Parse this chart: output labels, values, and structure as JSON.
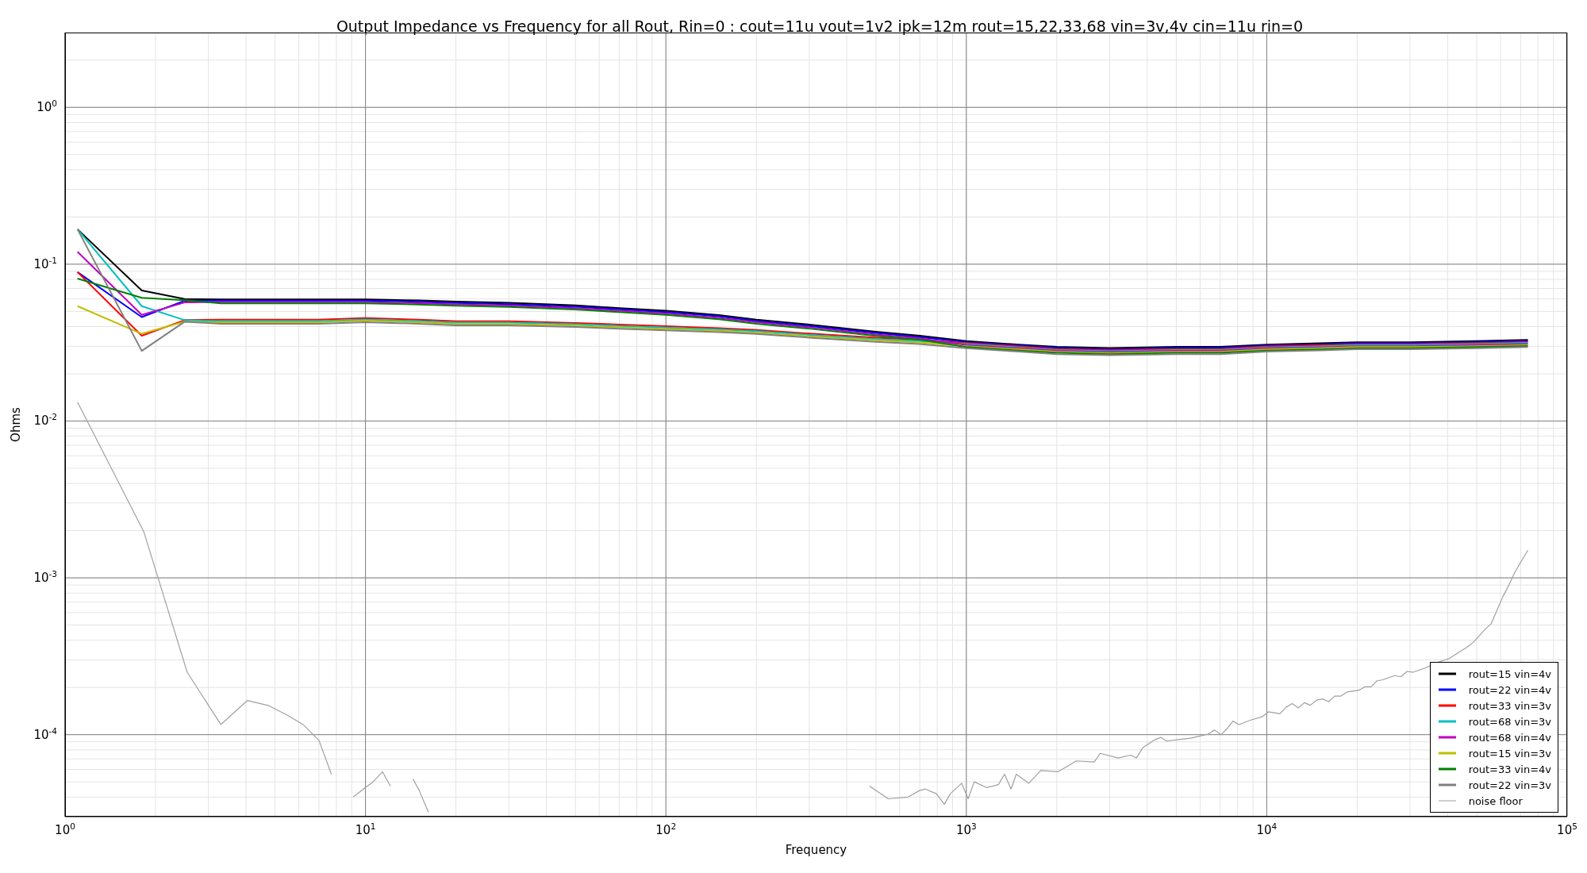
{
  "chart_data": {
    "type": "line",
    "title": "Output Impedance vs Frequency for all Rout, Rin=0 : cout=11u vout=1v2 ipk=12m rout=15,22,33,68 vin=3v,4v cin=11u rin=0",
    "xlabel": "Frequency",
    "ylabel": "Ohms",
    "log": "xy",
    "grid": true,
    "legend": "bottom right",
    "xlim": [
      1,
      100000
    ],
    "ylim": [
      3e-05,
      3
    ],
    "xticks": [
      {
        "value": 1,
        "label": "10$^{0}$"
      },
      {
        "value": 2,
        "label": null
      },
      {
        "value": 3,
        "label": null
      },
      {
        "value": 4,
        "label": null
      },
      {
        "value": 5,
        "label": null
      },
      {
        "value": 6,
        "label": null
      },
      {
        "value": 7,
        "label": null
      },
      {
        "value": 8,
        "label": null
      },
      {
        "value": 9,
        "label": null
      },
      {
        "value": 10,
        "label": "10$^{1}$"
      },
      {
        "value": 20,
        "label": null
      },
      {
        "value": 30,
        "label": null
      },
      {
        "value": 40,
        "label": null
      },
      {
        "value": 50,
        "label": null
      },
      {
        "value": 60,
        "label": null
      },
      {
        "value": 70,
        "label": null
      },
      {
        "value": 80,
        "label": null
      },
      {
        "value": 90,
        "label": null
      },
      {
        "value": 100,
        "label": "10$^{2}$"
      },
      {
        "value": 200,
        "label": null
      },
      {
        "value": 300,
        "label": null
      },
      {
        "value": 400,
        "label": null
      },
      {
        "value": 500,
        "label": null
      },
      {
        "value": 600,
        "label": null
      },
      {
        "value": 700,
        "label": null
      },
      {
        "value": 800,
        "label": null
      },
      {
        "value": 900,
        "label": null
      },
      {
        "value": 1000,
        "label": "10$^{3}$"
      },
      {
        "value": 2000,
        "label": null
      },
      {
        "value": 3000,
        "label": null
      },
      {
        "value": 4000,
        "label": null
      },
      {
        "value": 5000,
        "label": null
      },
      {
        "value": 6000,
        "label": null
      },
      {
        "value": 7000,
        "label": null
      },
      {
        "value": 8000,
        "label": null
      },
      {
        "value": 9000,
        "label": null
      },
      {
        "value": 10000,
        "label": "10$^{4}$"
      },
      {
        "value": 20000,
        "label": null
      },
      {
        "value": 30000,
        "label": null
      },
      {
        "value": 40000,
        "label": null
      },
      {
        "value": 50000,
        "label": null
      },
      {
        "value": 60000,
        "label": null
      },
      {
        "value": 70000,
        "label": null
      },
      {
        "value": 80000,
        "label": null
      },
      {
        "value": 90000,
        "label": null
      },
      {
        "value": 100000,
        "label": "10$^{5}$"
      }
    ],
    "yticks": [
      {
        "value": 4e-05,
        "label": null
      },
      {
        "value": 5e-05,
        "label": null
      },
      {
        "value": 6e-05,
        "label": null
      },
      {
        "value": 7e-05,
        "label": null
      },
      {
        "value": 8e-05,
        "label": null
      },
      {
        "value": 9e-05,
        "label": null
      },
      {
        "value": 0.0001,
        "label": "10$^{-4}$"
      },
      {
        "value": 0.0002,
        "label": null
      },
      {
        "value": 0.0003,
        "label": null
      },
      {
        "value": 0.0004,
        "label": null
      },
      {
        "value": 0.0005,
        "label": null
      },
      {
        "value": 0.0006,
        "label": null
      },
      {
        "value": 0.0007,
        "label": null
      },
      {
        "value": 0.0008,
        "label": null
      },
      {
        "value": 0.0009,
        "label": null
      },
      {
        "value": 0.001,
        "label": "10$^{-3}$"
      },
      {
        "value": 0.002,
        "label": null
      },
      {
        "value": 0.003,
        "label": null
      },
      {
        "value": 0.004,
        "label": null
      },
      {
        "value": 0.005,
        "label": null
      },
      {
        "value": 0.006,
        "label": null
      },
      {
        "value": 0.007,
        "label": null
      },
      {
        "value": 0.008,
        "label": null
      },
      {
        "value": 0.009,
        "label": null
      },
      {
        "value": 0.01,
        "label": "10$^{-2}$"
      },
      {
        "value": 0.02,
        "label": null
      },
      {
        "value": 0.03,
        "label": null
      },
      {
        "value": 0.04,
        "label": null
      },
      {
        "value": 0.05,
        "label": null
      },
      {
        "value": 0.06,
        "label": null
      },
      {
        "value": 0.07,
        "label": null
      },
      {
        "value": 0.08,
        "label": null
      },
      {
        "value": 0.09,
        "label": null
      },
      {
        "value": 0.1,
        "label": "10$^{-1}$"
      },
      {
        "value": 0.2,
        "label": null
      },
      {
        "value": 0.3,
        "label": null
      },
      {
        "value": 0.4,
        "label": null
      },
      {
        "value": 0.5,
        "label": null
      },
      {
        "value": 0.6,
        "label": null
      },
      {
        "value": 0.7,
        "label": null
      },
      {
        "value": 0.8,
        "label": null
      },
      {
        "value": 0.9,
        "label": null
      },
      {
        "value": 1,
        "label": "10$^{0}$"
      },
      {
        "value": 2,
        "label": null
      }
    ],
    "x": [
      1.1,
      1.8,
      2.5,
      3.3,
      5,
      7,
      10,
      15,
      20,
      30,
      50,
      70,
      100,
      150,
      200,
      300,
      500,
      700,
      1000,
      1500,
      2000,
      3000,
      5000,
      7000,
      10000,
      15000,
      20000,
      30000,
      50000,
      74000
    ],
    "series": [
      {
        "name": "rout=15 vin=4v",
        "color": "#000000",
        "values": [
          0.167,
          0.068,
          0.06,
          0.0597,
          0.0597,
          0.0597,
          0.0597,
          0.0587,
          0.0577,
          0.0567,
          0.0546,
          0.0525,
          0.0505,
          0.0474,
          0.0443,
          0.0412,
          0.0371,
          0.035,
          0.0323,
          0.0307,
          0.0297,
          0.0292,
          0.0297,
          0.0297,
          0.0307,
          0.0313,
          0.0318,
          0.0318,
          0.0323,
          0.0329
        ]
      },
      {
        "name": "rout=22 vin=4v",
        "color": "#0000ff",
        "values": [
          0.089,
          0.046,
          0.0585,
          0.0586,
          0.0586,
          0.0586,
          0.0586,
          0.0576,
          0.0566,
          0.0556,
          0.0535,
          0.0515,
          0.0495,
          0.0465,
          0.0434,
          0.0404,
          0.0364,
          0.0343,
          0.0319,
          0.0303,
          0.0293,
          0.0287,
          0.0293,
          0.0293,
          0.0303,
          0.0308,
          0.0314,
          0.0314,
          0.0319,
          0.0324
        ]
      },
      {
        "name": "rout=33 vin=3v",
        "color": "#ff0000",
        "values": [
          0.089,
          0.035,
          0.044,
          0.0443,
          0.0443,
          0.0443,
          0.0453,
          0.0443,
          0.0433,
          0.0433,
          0.0422,
          0.0412,
          0.0402,
          0.0391,
          0.0381,
          0.0361,
          0.034,
          0.033,
          0.0314,
          0.0299,
          0.0288,
          0.0283,
          0.0288,
          0.0288,
          0.0299,
          0.0304,
          0.0309,
          0.0309,
          0.0314,
          0.0319
        ]
      },
      {
        "name": "rout=68 vin=3v",
        "color": "#00bfbf",
        "values": [
          0.167,
          0.054,
          0.044,
          0.0434,
          0.0434,
          0.0434,
          0.0444,
          0.0434,
          0.0424,
          0.0424,
          0.0414,
          0.0404,
          0.0394,
          0.0384,
          0.0374,
          0.0354,
          0.0333,
          0.0323,
          0.031,
          0.0294,
          0.0284,
          0.0279,
          0.0284,
          0.0284,
          0.0294,
          0.0299,
          0.0305,
          0.0305,
          0.031,
          0.0315
        ]
      },
      {
        "name": "rout=68 vin=4v",
        "color": "#bf00bf",
        "values": [
          0.12,
          0.0475,
          0.057,
          0.0574,
          0.0574,
          0.0574,
          0.0574,
          0.0564,
          0.0554,
          0.0545,
          0.0525,
          0.0505,
          0.0485,
          0.0455,
          0.0426,
          0.0396,
          0.0356,
          0.0337,
          0.0305,
          0.029,
          0.028,
          0.0275,
          0.028,
          0.028,
          0.029,
          0.0295,
          0.03,
          0.03,
          0.0305,
          0.031
        ]
      },
      {
        "name": "rout=15 vin=3v",
        "color": "#bfbf00",
        "values": [
          0.054,
          0.036,
          0.043,
          0.0426,
          0.0426,
          0.0426,
          0.0436,
          0.0426,
          0.0416,
          0.0416,
          0.0406,
          0.0396,
          0.0386,
          0.0376,
          0.0366,
          0.0347,
          0.0327,
          0.0317,
          0.03,
          0.0286,
          0.0276,
          0.0271,
          0.0276,
          0.0276,
          0.0286,
          0.0291,
          0.0296,
          0.0296,
          0.03,
          0.0305
        ]
      },
      {
        "name": "rout=33 vin=4v",
        "color": "#008000",
        "values": [
          0.081,
          0.061,
          0.059,
          0.0563,
          0.0563,
          0.0563,
          0.0563,
          0.0553,
          0.0543,
          0.0534,
          0.0514,
          0.0495,
          0.0475,
          0.0446,
          0.0417,
          0.0388,
          0.0349,
          0.033,
          0.0296,
          0.0281,
          0.0272,
          0.0267,
          0.0272,
          0.0272,
          0.0281,
          0.0286,
          0.0291,
          0.0291,
          0.0296,
          0.0301
        ]
      },
      {
        "name": "rout=22 vin=3v",
        "color": "#808080",
        "values": [
          0.167,
          0.028,
          0.043,
          0.0417,
          0.0417,
          0.0417,
          0.0427,
          0.0417,
          0.0407,
          0.0407,
          0.0398,
          0.0388,
          0.0378,
          0.0369,
          0.0359,
          0.034,
          0.032,
          0.031,
          0.0291,
          0.0277,
          0.0267,
          0.0263,
          0.0267,
          0.0267,
          0.0277,
          0.0282,
          0.0287,
          0.0287,
          0.0291,
          0.0296
        ]
      },
      {
        "name": "noise floor",
        "color": "#a0a0a0",
        "x": [
          1.1,
          1.83,
          2.55,
          3.3,
          4.04,
          4.77,
          5.5,
          6.2,
          7.0,
          7.7,
          8.4,
          9.1,
          10,
          10.6,
          11.4,
          12.1,
          13,
          14.4,
          15.1,
          16.2,
          100,
          476,
          550,
          640,
          698,
          730,
          795,
          845,
          885,
          965,
          1014,
          1062,
          1168,
          1279,
          1340,
          1409,
          1467,
          1614,
          1769,
          2019,
          2324,
          2666,
          2791,
          3200,
          3522,
          3680,
          3875,
          4246,
          4444,
          4646,
          5093,
          5585,
          6397,
          6699,
          7047,
          7370,
          7718,
          8075,
          8850,
          9645,
          10140,
          11060,
          11620,
          12160,
          12740,
          13340,
          13960,
          14660,
          15350,
          16070,
          16830,
          17620,
          18500,
          20280,
          21240,
          22240,
          23240,
          24340,
          26700,
          27930,
          29310,
          30690,
          33650,
          36840,
          40380,
          44280,
          46360,
          48730,
          53350,
          55860,
          61130,
          64010,
          67020,
          74000
        ],
        "values": [
          0.0132,
          0.00196,
          0.00025,
          0.000116,
          0.000165,
          0.000153,
          0.000133,
          0.000116,
          9.2e-05,
          5.6e-05,
          null,
          4e-05,
          4.6e-05,
          5e-05,
          5.8e-05,
          4.7e-05,
          null,
          5.2e-05,
          4.4e-05,
          3.2e-05,
          null,
          4.7e-05,
          3.9e-05,
          4e-05,
          4.4e-05,
          4.5e-05,
          4.2e-05,
          3.6e-05,
          4.2e-05,
          4.9e-05,
          3.9e-05,
          5e-05,
          4.6e-05,
          4.8e-05,
          5.6e-05,
          4.5e-05,
          5.6e-05,
          4.9e-05,
          5.9e-05,
          5.8e-05,
          6.8e-05,
          6.7e-05,
          7.6e-05,
          7.1e-05,
          7.4e-05,
          7.1e-05,
          8.3e-05,
          9.3e-05,
          9.6e-05,
          9.1e-05,
          9.3e-05,
          9.5e-05,
          0.000101,
          0.000107,
          0.0001,
          0.000109,
          0.000122,
          0.000116,
          0.000124,
          0.00013,
          0.00014,
          0.000136,
          0.00015,
          0.000158,
          0.000148,
          0.00016,
          0.000154,
          0.000166,
          0.000169,
          0.000162,
          0.000176,
          0.000176,
          0.000187,
          0.000192,
          0.000202,
          0.000202,
          0.00022,
          0.000224,
          0.000238,
          0.000234,
          0.000253,
          0.00025,
          0.000266,
          0.000288,
          0.000305,
          0.000342,
          0.00036,
          0.000389,
          0.00047,
          0.00051,
          0.00076,
          0.0009,
          0.00109,
          0.0015
        ]
      }
    ]
  }
}
